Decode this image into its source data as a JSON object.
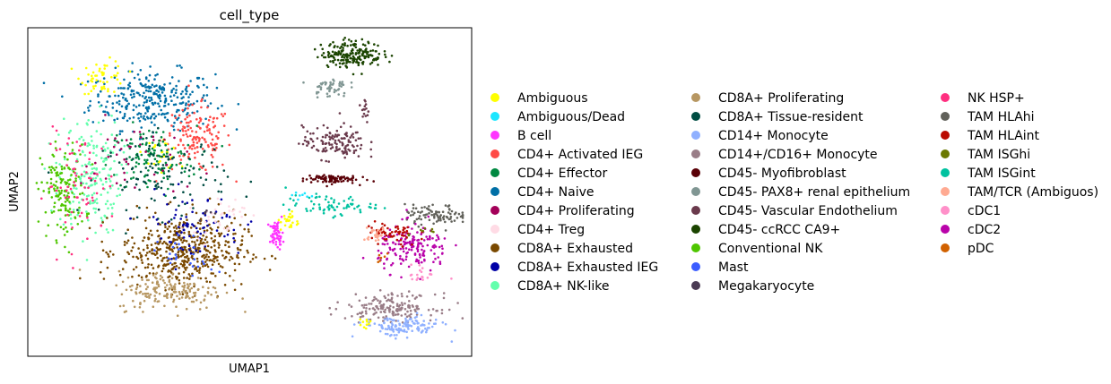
{
  "chart_data": {
    "type": "scatter",
    "title": "cell_type",
    "xlabel": "UMAP1",
    "ylabel": "UMAP2",
    "xlim": [
      0,
      100
    ],
    "ylim": [
      0,
      100
    ],
    "grid": false,
    "ticks": false,
    "legend_placement": "right",
    "legend": [
      {
        "name": "Ambiguous",
        "color": "#ffff00"
      },
      {
        "name": "Ambiguous/Dead",
        "color": "#1ce6ff"
      },
      {
        "name": "B cell",
        "color": "#ff34ff"
      },
      {
        "name": "CD4+ Activated IEG",
        "color": "#ff4a46"
      },
      {
        "name": "CD4+ Effector",
        "color": "#008941"
      },
      {
        "name": "CD4+ Naive",
        "color": "#006fa6"
      },
      {
        "name": "CD4+ Proliferating",
        "color": "#a30059"
      },
      {
        "name": "CD4+ Treg",
        "color": "#ffdbe5"
      },
      {
        "name": "CD8A+ Exhausted",
        "color": "#7a4900"
      },
      {
        "name": "CD8A+ Exhausted IEG",
        "color": "#0000a6"
      },
      {
        "name": "CD8A+ NK-like",
        "color": "#63ffac"
      },
      {
        "name": "CD8A+ Proliferating",
        "color": "#b79762"
      },
      {
        "name": "CD8A+ Tissue-resident",
        "color": "#004d43"
      },
      {
        "name": "CD14+ Monocyte",
        "color": "#8fb0ff"
      },
      {
        "name": "CD14+/CD16+ Monocyte",
        "color": "#997d87"
      },
      {
        "name": "CD45- Myofibroblast",
        "color": "#5a0007"
      },
      {
        "name": "CD45- PAX8+ renal epithelium",
        "color": "#809693"
      },
      {
        "name": "CD45- Vascular Endothelium",
        "color": "#6a3a4c"
      },
      {
        "name": "CD45- ccRCC CA9+",
        "color": "#1b4400"
      },
      {
        "name": "Conventional NK",
        "color": "#4fc601"
      },
      {
        "name": "Mast",
        "color": "#3b5dff"
      },
      {
        "name": "Megakaryocyte",
        "color": "#4a3b53"
      },
      {
        "name": "NK HSP+",
        "color": "#ff2f80"
      },
      {
        "name": "TAM HLAhi",
        "color": "#61615a"
      },
      {
        "name": "TAM HLAint",
        "color": "#ba0900"
      },
      {
        "name": "TAM ISGhi",
        "color": "#6b7900"
      },
      {
        "name": "TAM ISGint",
        "color": "#00c2a0"
      },
      {
        "name": "TAM/TCR (Ambiguos)",
        "color": "#ffaa92"
      },
      {
        "name": "cDC1",
        "color": "#ff90c9"
      },
      {
        "name": "cDC2",
        "color": "#b903aa"
      },
      {
        "name": "pDC",
        "color": "#d16100"
      }
    ],
    "clusters": [
      {
        "cat": 5,
        "cx": 28,
        "cy": 78,
        "rx": 14,
        "ry": 9,
        "n": 300
      },
      {
        "cat": 3,
        "cx": 38,
        "cy": 66,
        "rx": 8,
        "ry": 10,
        "n": 150
      },
      {
        "cat": 0,
        "cx": 17,
        "cy": 85,
        "rx": 5,
        "ry": 5,
        "n": 55
      },
      {
        "cat": 0,
        "cx": 30,
        "cy": 62,
        "rx": 4,
        "ry": 5,
        "n": 30
      },
      {
        "cat": 4,
        "cx": 28,
        "cy": 60,
        "rx": 10,
        "ry": 10,
        "n": 120
      },
      {
        "cat": 10,
        "cx": 14,
        "cy": 55,
        "rx": 7,
        "ry": 18,
        "n": 190
      },
      {
        "cat": 19,
        "cx": 8,
        "cy": 50,
        "rx": 5,
        "ry": 14,
        "n": 150
      },
      {
        "cat": 22,
        "cx": 12,
        "cy": 52,
        "rx": 8,
        "ry": 16,
        "n": 70
      },
      {
        "cat": 12,
        "cx": 31,
        "cy": 55,
        "rx": 14,
        "ry": 12,
        "n": 110
      },
      {
        "cat": 6,
        "cx": 24,
        "cy": 60,
        "rx": 12,
        "ry": 12,
        "n": 40
      },
      {
        "cat": 8,
        "cx": 35,
        "cy": 32,
        "rx": 14,
        "ry": 11,
        "n": 480
      },
      {
        "cat": 11,
        "cx": 32,
        "cy": 20,
        "rx": 12,
        "ry": 6,
        "n": 170
      },
      {
        "cat": 9,
        "cx": 37,
        "cy": 40,
        "rx": 12,
        "ry": 10,
        "n": 80
      },
      {
        "cat": 7,
        "cx": 43,
        "cy": 43,
        "rx": 6,
        "ry": 6,
        "n": 35
      },
      {
        "cat": 2,
        "cx": 56,
        "cy": 37,
        "rx": 1.5,
        "ry": 4,
        "n": 60
      },
      {
        "cat": 0,
        "cx": 59,
        "cy": 41,
        "rx": 2,
        "ry": 3,
        "n": 25
      },
      {
        "cat": 26,
        "cx": 68,
        "cy": 46,
        "rx": 10,
        "ry": 3,
        "n": 70
      },
      {
        "cat": 1,
        "cx": 62,
        "cy": 48,
        "rx": 3,
        "ry": 2,
        "n": 8
      },
      {
        "cat": 15,
        "cx": 68,
        "cy": 54,
        "rx": 6,
        "ry": 1.5,
        "n": 90
      },
      {
        "cat": 17,
        "cx": 69,
        "cy": 65,
        "rx": 7,
        "ry": 5,
        "n": 130
      },
      {
        "cat": 18,
        "cx": 73,
        "cy": 92,
        "rx": 7,
        "ry": 4,
        "n": 200
      },
      {
        "cat": 16,
        "cx": 68,
        "cy": 82,
        "rx": 4,
        "ry": 3,
        "n": 50
      },
      {
        "cat": 17,
        "cx": 76,
        "cy": 75,
        "rx": 1,
        "ry": 5,
        "n": 15
      },
      {
        "cat": 23,
        "cx": 92,
        "cy": 43,
        "rx": 7,
        "ry": 3,
        "n": 90
      },
      {
        "cat": 29,
        "cx": 87,
        "cy": 33,
        "rx": 8,
        "ry": 7,
        "n": 170
      },
      {
        "cat": 24,
        "cx": 82,
        "cy": 37,
        "rx": 6,
        "ry": 4,
        "n": 60
      },
      {
        "cat": 27,
        "cx": 78,
        "cy": 37,
        "rx": 3,
        "ry": 2,
        "n": 25
      },
      {
        "cat": 14,
        "cx": 82,
        "cy": 15,
        "rx": 10,
        "ry": 4,
        "n": 170
      },
      {
        "cat": 13,
        "cx": 84,
        "cy": 9,
        "rx": 9,
        "ry": 3,
        "n": 130
      },
      {
        "cat": 0,
        "cx": 76,
        "cy": 10,
        "rx": 2,
        "ry": 2,
        "n": 10
      },
      {
        "cat": 28,
        "cx": 89,
        "cy": 25,
        "rx": 3,
        "ry": 3,
        "n": 20
      },
      {
        "cat": 21,
        "cx": 41,
        "cy": 44,
        "rx": 2,
        "ry": 2,
        "n": 6
      },
      {
        "cat": 20,
        "cx": 36,
        "cy": 30,
        "rx": 6,
        "ry": 6,
        "n": 25
      },
      {
        "cat": 30,
        "cx": 80,
        "cy": 30,
        "rx": 2,
        "ry": 2,
        "n": 6
      },
      {
        "cat": 25,
        "cx": 90,
        "cy": 38,
        "rx": 3,
        "ry": 2,
        "n": 8
      }
    ]
  }
}
